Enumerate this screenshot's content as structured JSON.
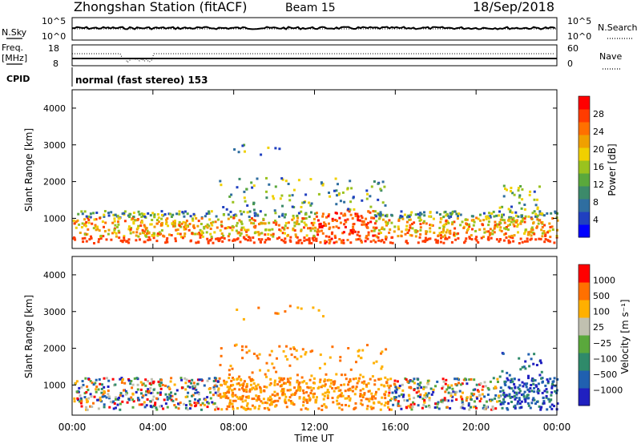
{
  "header": {
    "station": "Zhongshan Station (fitACF)",
    "beam": "Beam 15",
    "date": "18/Sep/2018"
  },
  "aux_panels": {
    "nsky_label": "N.Sky",
    "nsky_ticks": [
      "10^5",
      "10^0"
    ],
    "nsearch_label": "N.Search",
    "nsearch_ticks": [
      "10^5",
      "10^0"
    ],
    "freq_label_1": "Freq.",
    "freq_label_2": "[MHz]",
    "freq_ticks": [
      "18",
      "8"
    ],
    "nave_label": "Nave",
    "nave_ticks": [
      "60",
      "0"
    ],
    "cpid_label": "CPID",
    "cpid_text": "normal (fast stereo) 153"
  },
  "chart_data": [
    {
      "type": "heatmap",
      "name": "power",
      "ylabel": "Slant Range [km]",
      "yticks": [
        "4000",
        "3000",
        "2000",
        "1000"
      ],
      "ylim": [
        180,
        4500
      ],
      "colorbar_label": "Power [dB]",
      "colorbar_ticks": [
        "28",
        "24",
        "20",
        "16",
        "12",
        "8",
        "4"
      ],
      "colors": [
        "#0000ff",
        "#2040c0",
        "#2f6ea0",
        "#3c8a6a",
        "#5aa83c",
        "#9ac21e",
        "#f0d000",
        "#f0a000",
        "#ff7000",
        "#ff3c00",
        "#ff0000"
      ]
    },
    {
      "type": "heatmap",
      "name": "velocity",
      "ylabel": "Slant Range [km]",
      "yticks": [
        "4000",
        "3000",
        "2000",
        "1000"
      ],
      "ylim": [
        180,
        4500
      ],
      "colorbar_label": "Velocity [m s⁻¹]",
      "colorbar_ticks": [
        "1000",
        "500",
        "100",
        "25",
        "−25",
        "−100",
        "−500",
        "−1000"
      ],
      "colors": [
        "#2020c0",
        "#2060b0",
        "#2f8a6a",
        "#5aa83c",
        "#c0c0b0",
        "#ffb000",
        "#ff7000",
        "#ff0000"
      ],
      "xlabel": "Time UT",
      "xticks": [
        "00:00",
        "04:00",
        "08:00",
        "12:00",
        "16:00",
        "20:00",
        "00:00"
      ]
    }
  ]
}
